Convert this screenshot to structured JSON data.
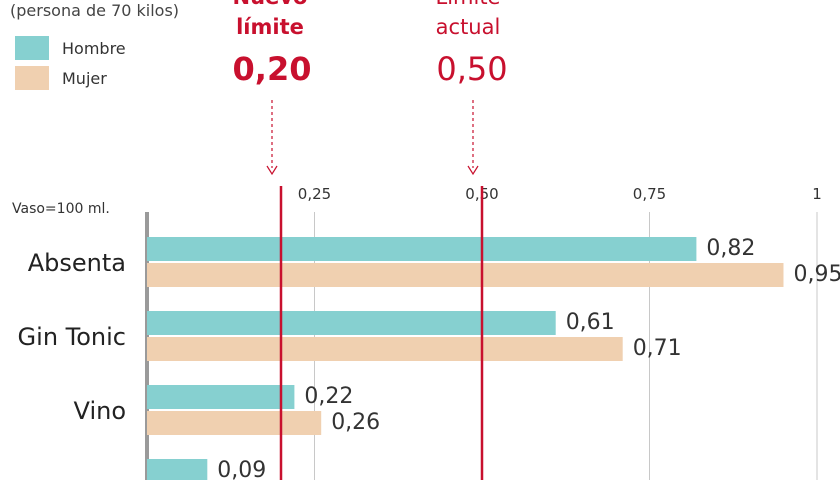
{
  "chart_data": {
    "type": "bar",
    "subtitle": "(persona de 70 kilos)",
    "note": "Vaso=100 ml.",
    "categories": [
      "Absenta",
      "Gin Tonic",
      "Vino",
      ""
    ],
    "series": [
      {
        "name": "Hombre",
        "color": "#86d0d0",
        "values": [
          0.82,
          0.61,
          0.22,
          0.09
        ],
        "labels": [
          "0,82",
          "0,61",
          "0,22",
          "0,09"
        ]
      },
      {
        "name": "Mujer",
        "color": "#f0d0b0",
        "values": [
          0.95,
          0.71,
          0.26,
          null
        ],
        "labels": [
          "0,95",
          "0,71",
          "0,26",
          ""
        ]
      }
    ],
    "xlim": [
      0,
      1
    ],
    "ticks": [
      {
        "value": 0.25,
        "label": "0,25"
      },
      {
        "value": 0.5,
        "label": "0,50"
      },
      {
        "value": 0.75,
        "label": "0,75"
      },
      {
        "value": 1.0,
        "label": "1"
      }
    ],
    "reference_lines": [
      {
        "value": 0.2,
        "title_line1": "Nuevo",
        "title_line2": "límite",
        "label": "0,20",
        "color": "#c8102e",
        "bold": true
      },
      {
        "value": 0.5,
        "title_line1": "Límite",
        "title_line2": "actual",
        "label": "0,50",
        "color": "#c8102e",
        "bold": false
      }
    ],
    "grid": true
  }
}
